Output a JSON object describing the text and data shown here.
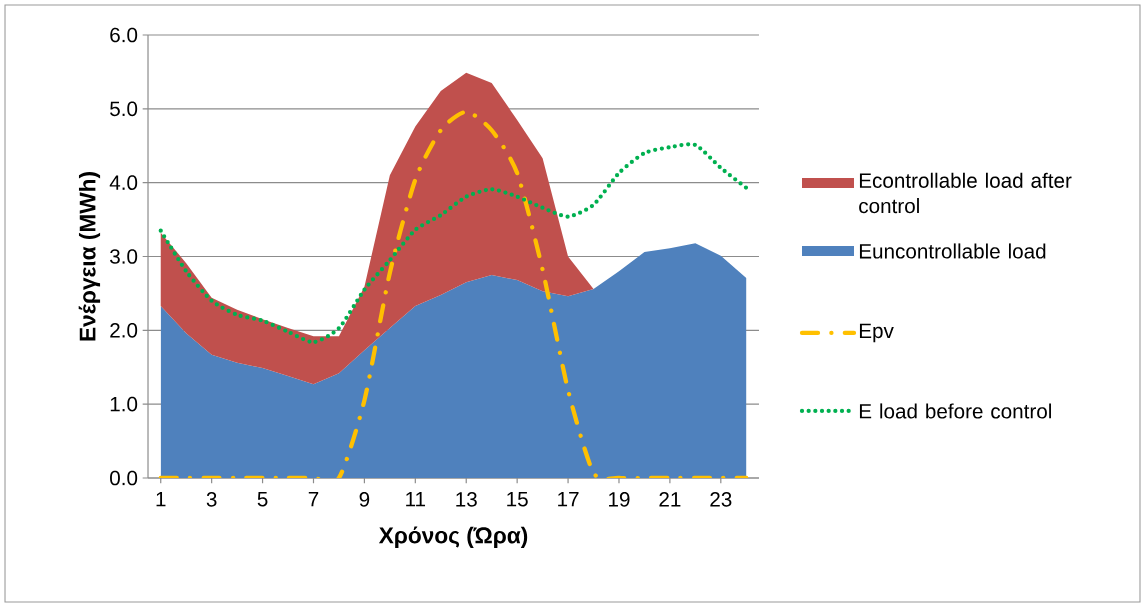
{
  "chart_data": {
    "type": "area",
    "xlabel": "Χρόνος (Ώρα)",
    "ylabel": "Ενέργεια (MWh)",
    "x": [
      1,
      2,
      3,
      4,
      5,
      6,
      7,
      8,
      9,
      10,
      11,
      12,
      13,
      14,
      15,
      16,
      17,
      18,
      19,
      20,
      21,
      22,
      23,
      24
    ],
    "xlim": [
      0.5,
      24.5
    ],
    "xticks": [
      1,
      3,
      5,
      7,
      9,
      11,
      13,
      15,
      17,
      19,
      21,
      23
    ],
    "ylim": [
      0,
      6
    ],
    "yticks": [
      {
        "value": 0,
        "label": "0.0"
      },
      {
        "value": 1,
        "label": "1.0"
      },
      {
        "value": 2,
        "label": "2.0"
      },
      {
        "value": 3,
        "label": "3.0"
      },
      {
        "value": 4,
        "label": "4.0"
      },
      {
        "value": 5,
        "label": "5.0"
      },
      {
        "value": 6,
        "label": "6.0"
      }
    ],
    "grid": "y",
    "legend": "right",
    "stacked": true,
    "series": [
      {
        "name": "Euncontrollable load",
        "color": "#4f81bd",
        "values": [
          2.33,
          1.96,
          1.67,
          1.56,
          1.49,
          1.38,
          1.27,
          1.42,
          1.73,
          2.03,
          2.33,
          2.48,
          2.65,
          2.75,
          2.68,
          2.53,
          2.46,
          2.56,
          2.8,
          3.06,
          3.11,
          3.18,
          3.01,
          2.71
        ]
      },
      {
        "name": "Econtrollable load after control",
        "color": "#c0504d",
        "values": [
          0.99,
          0.95,
          0.77,
          0.72,
          0.66,
          0.65,
          0.65,
          0.5,
          0.86,
          2.07,
          2.43,
          2.76,
          2.84,
          2.6,
          2.17,
          1.8,
          0.54,
          0,
          0,
          0,
          0,
          0,
          0,
          0
        ]
      },
      {
        "name": "Epv",
        "type": "line",
        "color": "#ffc000",
        "line_style": "dashdot",
        "values": [
          0,
          0,
          0,
          0,
          0,
          0,
          0,
          0,
          1.05,
          2.78,
          4.04,
          4.71,
          4.96,
          4.71,
          4.13,
          2.82,
          1.19,
          0.07,
          0,
          0,
          0,
          0,
          0,
          0
        ]
      },
      {
        "name": "E load before control",
        "type": "line",
        "color": "#00b050",
        "line_style": "dotted",
        "values": [
          3.35,
          2.8,
          2.4,
          2.21,
          2.13,
          1.98,
          1.84,
          2.03,
          2.55,
          2.95,
          3.36,
          3.56,
          3.81,
          3.91,
          3.81,
          3.66,
          3.54,
          3.7,
          4.13,
          4.4,
          4.48,
          4.51,
          4.2,
          3.93
        ]
      }
    ]
  }
}
